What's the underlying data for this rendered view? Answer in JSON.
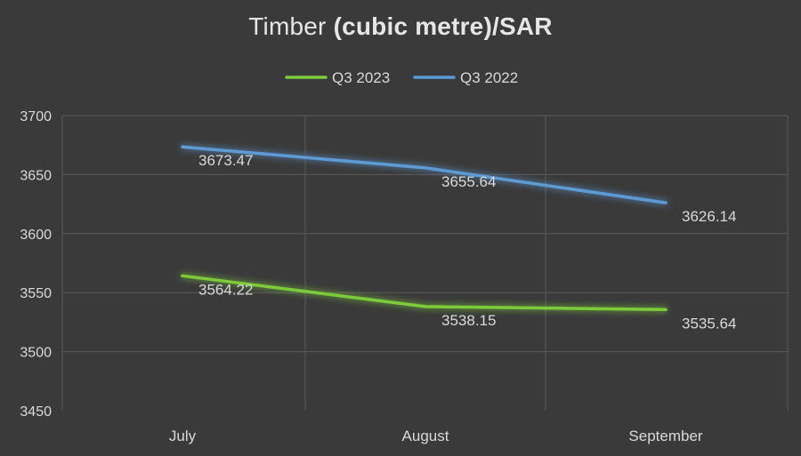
{
  "chart_data": {
    "type": "line",
    "title_prefix": "Timber ",
    "title_bold": "(cubic metre)/SAR",
    "categories": [
      "July",
      "August",
      "September"
    ],
    "series": [
      {
        "name": "Q3 2023",
        "values": [
          3564.22,
          3538.15,
          3535.64
        ],
        "labels": [
          "3564.22",
          "3538.15",
          "3535.64"
        ],
        "color": "#7ccb3a"
      },
      {
        "name": "Q3 2022",
        "values": [
          3673.47,
          3655.64,
          3626.14
        ],
        "labels": [
          "3673.47",
          "3655.64",
          "3626.14"
        ],
        "color": "#5b9bd5"
      }
    ],
    "ylim": [
      3450,
      3700
    ],
    "y_ticks": [
      "3450",
      "3500",
      "3550",
      "3600",
      "3650",
      "3700"
    ],
    "grid": true,
    "legend_position": "top-center"
  },
  "colors": {
    "background": "#3a3a3a",
    "gridline": "#5a5a5a",
    "text": "#d9d9d9"
  }
}
